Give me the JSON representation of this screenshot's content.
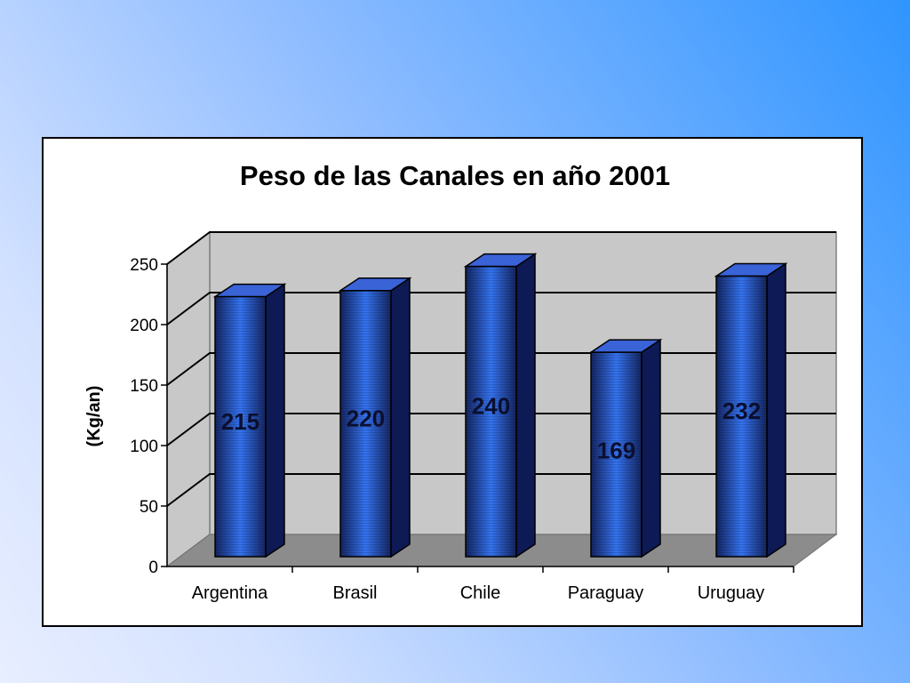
{
  "chart_data": {
    "type": "bar",
    "title": "Peso de las Canales en año 2001",
    "ylabel": "(Kg/an)",
    "xlabel": "",
    "categories": [
      "Argentina",
      "Brasil",
      "Chile",
      "Paraguay",
      "Uruguay"
    ],
    "values": [
      215,
      220,
      240,
      169,
      232
    ],
    "ylim": [
      0,
      250
    ],
    "yticks": [
      0,
      50,
      100,
      150,
      200,
      250
    ],
    "grid": true,
    "legend": "none",
    "style": "3d-column",
    "colors": {
      "bar_front": "#2d6ae8",
      "bar_side": "#0e1a55",
      "bar_top": "#3a63d8",
      "wall": "#c8c8c8",
      "floor": "#8c8c8c"
    }
  }
}
